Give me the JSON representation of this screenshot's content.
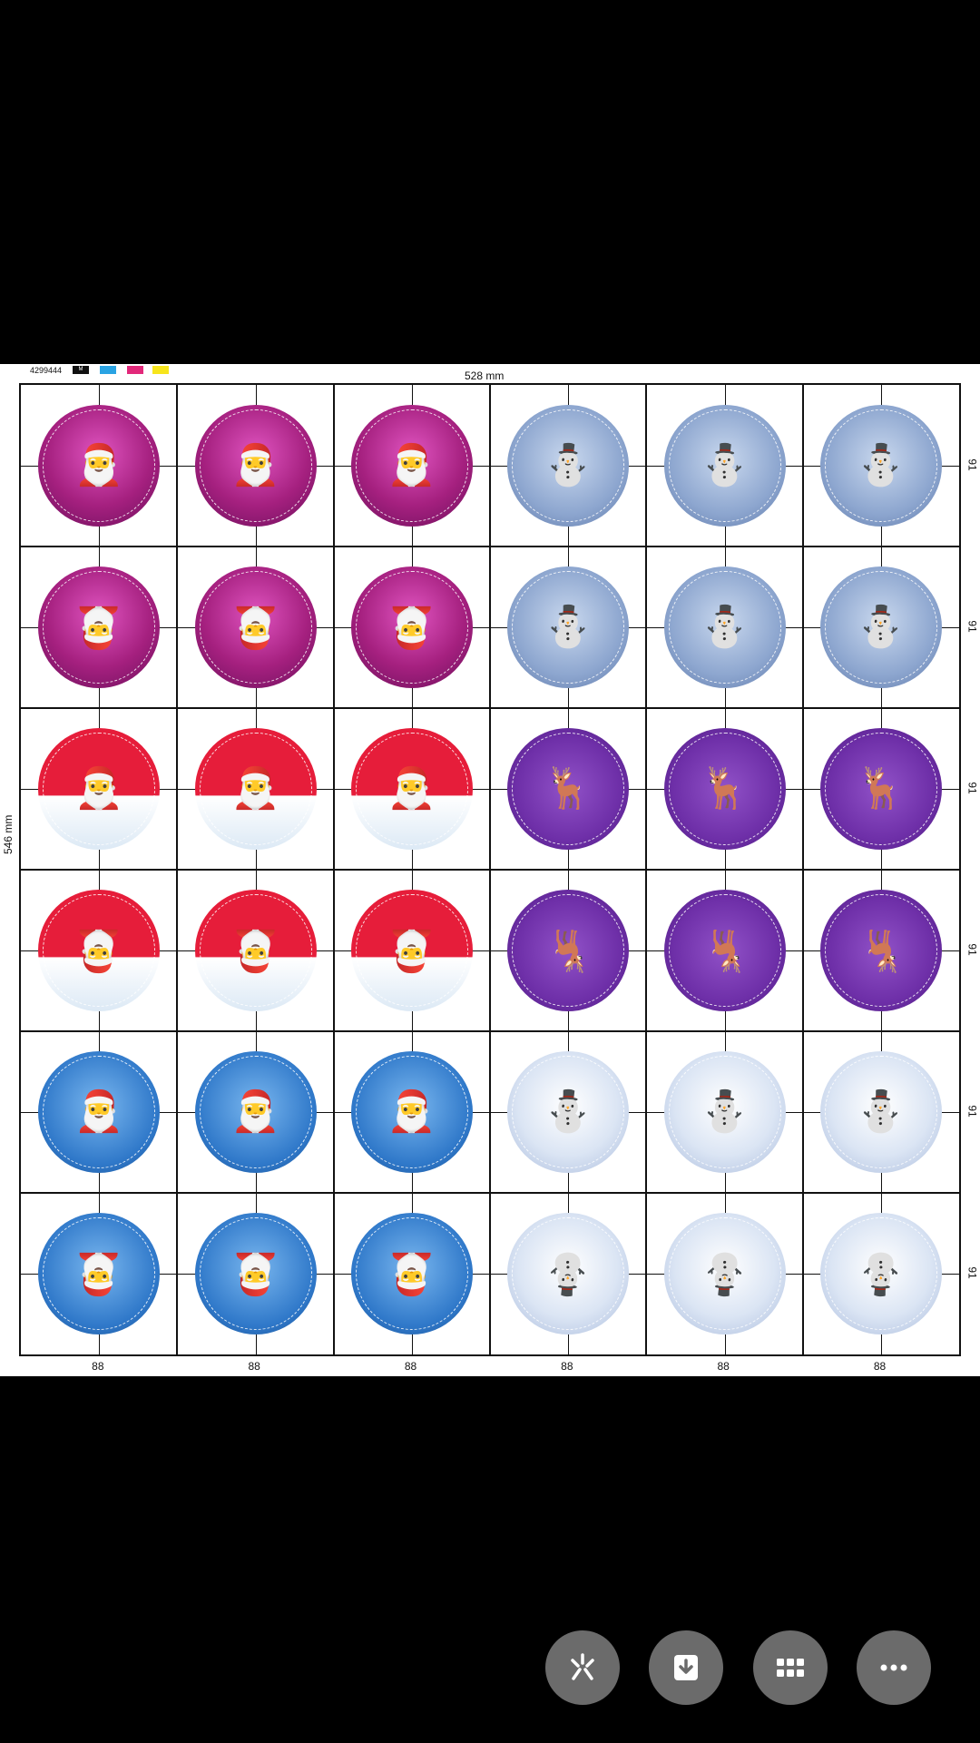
{
  "sheet": {
    "job_code": "4299444",
    "swatches": [
      {
        "label": "M",
        "color": "#111111"
      },
      {
        "label": "",
        "color": "#29a3e3"
      },
      {
        "label": "",
        "color": "#e2287a"
      },
      {
        "label": "",
        "color": "#f7e51c"
      }
    ],
    "width_label": "528 mm",
    "height_label": "546 mm",
    "col_dims": [
      "88",
      "88",
      "88",
      "88",
      "88",
      "88"
    ],
    "row_dims": [
      "91",
      "91",
      "91",
      "91",
      "91",
      "91"
    ]
  },
  "stickers": {
    "rows": [
      [
        "santa-purple",
        "santa-purple",
        "santa-purple",
        "snowman-blue",
        "snowman-blue",
        "snowman-blue"
      ],
      [
        "santa-purple-flip",
        "santa-purple-flip",
        "santa-purple-flip",
        "snowman-blue",
        "snowman-blue",
        "snowman-blue"
      ],
      [
        "santa-red",
        "santa-red",
        "santa-red",
        "reindeer-purple",
        "reindeer-purple",
        "reindeer-purple"
      ],
      [
        "santa-red-flip",
        "santa-red-flip",
        "santa-red-flip",
        "reindeer-purple-flip",
        "reindeer-purple-flip",
        "reindeer-purple-flip"
      ],
      [
        "santa-blue",
        "santa-blue",
        "santa-blue",
        "snowman-light",
        "snowman-light",
        "snowman-light"
      ],
      [
        "santa-blue-flip",
        "santa-blue-flip",
        "santa-blue-flip",
        "snowman-light-flip",
        "snowman-light-flip",
        "snowman-light-flip"
      ]
    ]
  },
  "toolbar": {
    "buttons": [
      {
        "name": "lens-button",
        "icon": "sparkle-icon"
      },
      {
        "name": "download-button",
        "icon": "download-icon"
      },
      {
        "name": "grid-button",
        "icon": "grid-icon"
      },
      {
        "name": "more-button",
        "icon": "more-icon"
      }
    ]
  }
}
